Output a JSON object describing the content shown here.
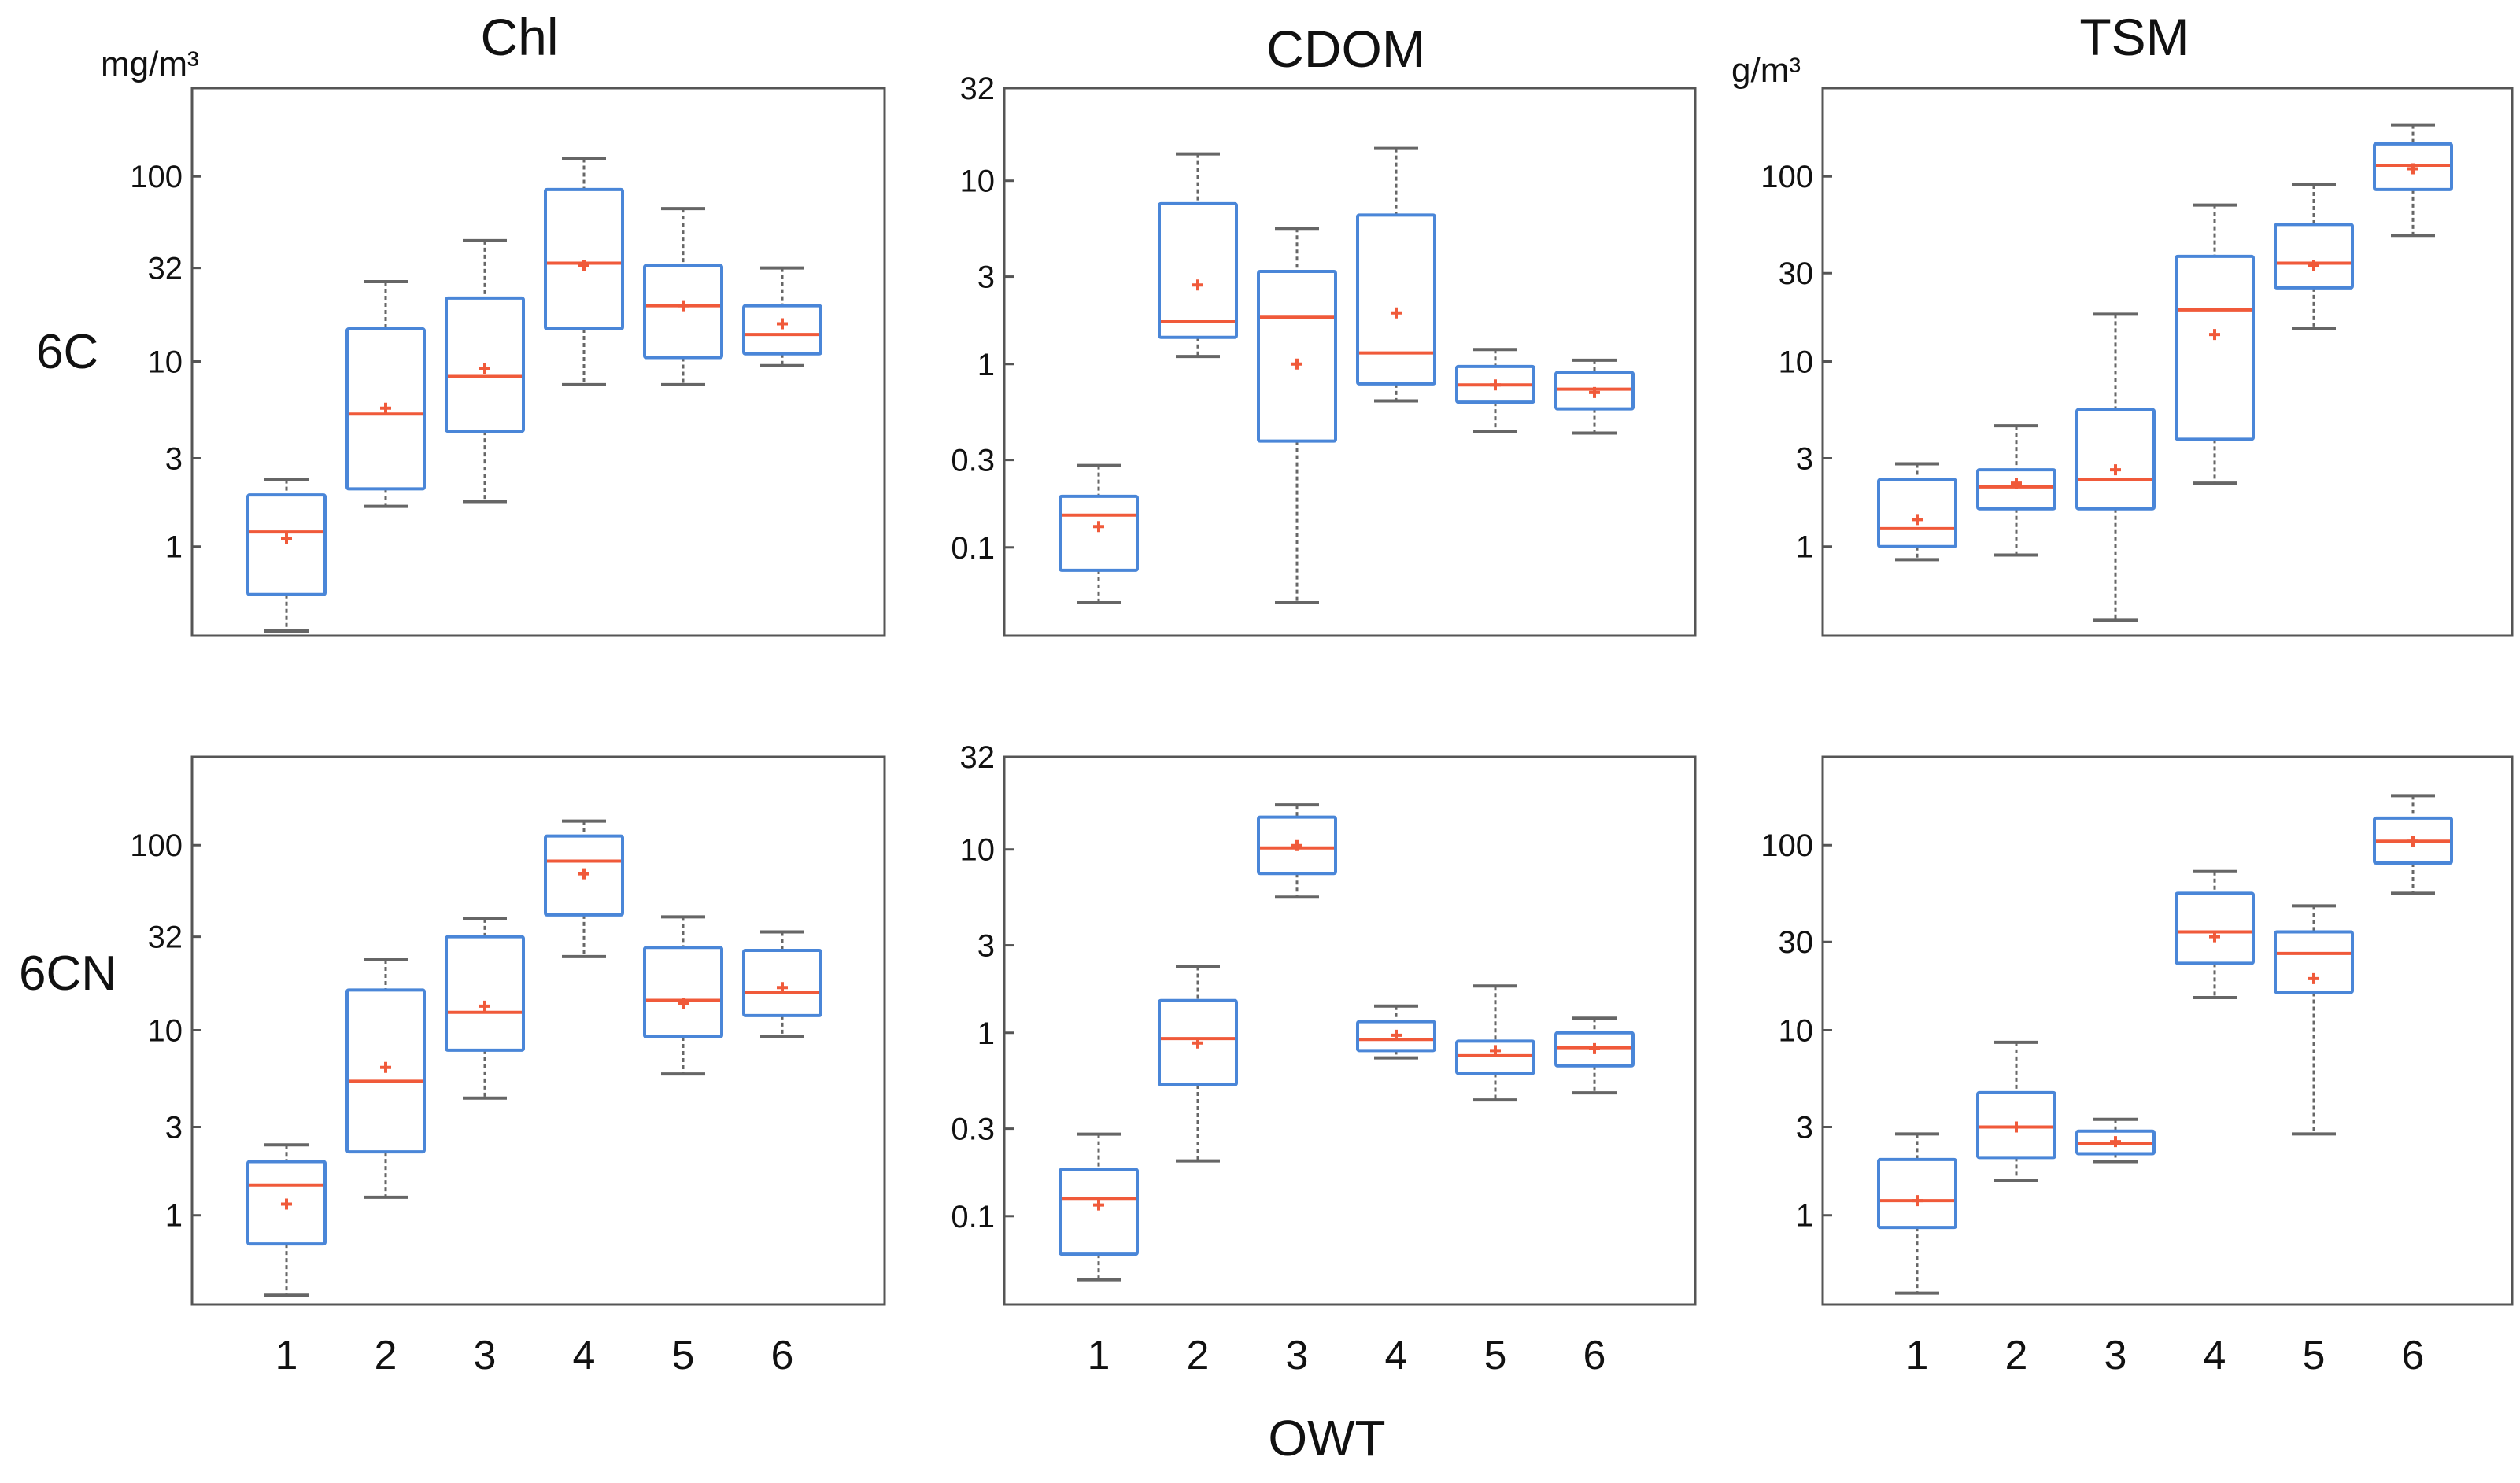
{
  "figure": {
    "xlabel": "OWT",
    "colors": {
      "box": "#4a86d8",
      "median": "#f05a3a",
      "whisker": "#666666",
      "frame": "#555555",
      "mean": "#f05a3a"
    }
  },
  "chart_data": [
    {
      "id": "chl-6c",
      "type": "boxplot",
      "row": "6C",
      "title": "Chl",
      "unit": "mg/m³",
      "yscale": "log",
      "ylim": [
        0.33,
        300
      ],
      "yticks": [
        1,
        3,
        10,
        32,
        100
      ],
      "ytick_labels": [
        "1",
        "3",
        "10",
        "32",
        "100"
      ],
      "categories": [
        "1",
        "2",
        "3",
        "4",
        "5",
        "6"
      ],
      "boxes": [
        {
          "x": "1",
          "low": 0.35,
          "q1": 0.55,
          "median": 1.2,
          "q3": 1.9,
          "high": 2.3,
          "mean": 1.1
        },
        {
          "x": "2",
          "low": 1.65,
          "q1": 2.05,
          "median": 5.2,
          "q3": 15,
          "high": 27,
          "mean": 5.6
        },
        {
          "x": "3",
          "low": 1.75,
          "q1": 4.2,
          "median": 8.3,
          "q3": 22,
          "high": 45,
          "mean": 9.2
        },
        {
          "x": "4",
          "low": 7.5,
          "q1": 15,
          "median": 34,
          "q3": 85,
          "high": 125,
          "mean": 33
        },
        {
          "x": "5",
          "low": 7.5,
          "q1": 10.5,
          "median": 20,
          "q3": 33,
          "high": 67,
          "mean": 20
        },
        {
          "x": "6",
          "low": 9.5,
          "q1": 11,
          "median": 14,
          "q3": 20,
          "high": 32,
          "mean": 16
        }
      ]
    },
    {
      "id": "cdom-6c",
      "type": "boxplot",
      "row": "6C",
      "title": "CDOM",
      "unit": "",
      "yscale": "log",
      "ylim": [
        0.033,
        32
      ],
      "yticks": [
        0.1,
        0.3,
        1,
        3,
        10,
        32
      ],
      "ytick_labels": [
        "0.1",
        "0.3",
        "1",
        "3",
        "10",
        "32"
      ],
      "categories": [
        "1",
        "2",
        "3",
        "4",
        "5",
        "6"
      ],
      "boxes": [
        {
          "x": "1",
          "low": 0.05,
          "q1": 0.075,
          "median": 0.15,
          "q3": 0.19,
          "high": 0.28,
          "mean": 0.13
        },
        {
          "x": "2",
          "low": 1.1,
          "q1": 1.4,
          "median": 1.7,
          "q3": 7.5,
          "high": 14,
          "mean": 2.7
        },
        {
          "x": "3",
          "low": 0.05,
          "q1": 0.38,
          "median": 1.8,
          "q3": 3.2,
          "high": 5.5,
          "mean": 1.0
        },
        {
          "x": "4",
          "low": 0.63,
          "q1": 0.78,
          "median": 1.15,
          "q3": 6.5,
          "high": 15,
          "mean": 1.9
        },
        {
          "x": "5",
          "low": 0.43,
          "q1": 0.62,
          "median": 0.77,
          "q3": 0.97,
          "high": 1.2,
          "mean": 0.77
        },
        {
          "x": "6",
          "low": 0.42,
          "q1": 0.57,
          "median": 0.73,
          "q3": 0.9,
          "high": 1.05,
          "mean": 0.7
        }
      ]
    },
    {
      "id": "tsm-6c",
      "type": "boxplot",
      "row": "6C",
      "title": "TSM",
      "unit": "g/m³",
      "yscale": "log",
      "ylim": [
        0.33,
        300
      ],
      "yticks": [
        1,
        3,
        10,
        30,
        100
      ],
      "ytick_labels": [
        "1",
        "3",
        "10",
        "30",
        "100"
      ],
      "categories": [
        "1",
        "2",
        "3",
        "4",
        "5",
        "6"
      ],
      "boxes": [
        {
          "x": "1",
          "low": 0.85,
          "q1": 1.0,
          "median": 1.25,
          "q3": 2.3,
          "high": 2.8,
          "mean": 1.4
        },
        {
          "x": "2",
          "low": 0.9,
          "q1": 1.6,
          "median": 2.1,
          "q3": 2.6,
          "high": 4.5,
          "mean": 2.2
        },
        {
          "x": "3",
          "low": 0.4,
          "q1": 1.6,
          "median": 2.3,
          "q3": 5.5,
          "high": 18,
          "mean": 2.6
        },
        {
          "x": "4",
          "low": 2.2,
          "q1": 3.8,
          "median": 19,
          "q3": 37,
          "high": 70,
          "mean": 14
        },
        {
          "x": "5",
          "low": 15,
          "q1": 25,
          "median": 34,
          "q3": 55,
          "high": 90,
          "mean": 33
        },
        {
          "x": "6",
          "low": 48,
          "q1": 85,
          "median": 115,
          "q3": 150,
          "high": 190,
          "mean": 110
        }
      ]
    },
    {
      "id": "chl-6cn",
      "type": "boxplot",
      "row": "6CN",
      "title": "",
      "unit": "",
      "yscale": "log",
      "ylim": [
        0.33,
        300
      ],
      "yticks": [
        1,
        3,
        10,
        32,
        100
      ],
      "ytick_labels": [
        "1",
        "3",
        "10",
        "32",
        "100"
      ],
      "categories": [
        "1",
        "2",
        "3",
        "4",
        "5",
        "6"
      ],
      "boxes": [
        {
          "x": "1",
          "low": 0.37,
          "q1": 0.7,
          "median": 1.45,
          "q3": 1.95,
          "high": 2.4,
          "mean": 1.15
        },
        {
          "x": "2",
          "low": 1.25,
          "q1": 2.2,
          "median": 5.3,
          "q3": 16.5,
          "high": 24,
          "mean": 6.3
        },
        {
          "x": "3",
          "low": 4.3,
          "q1": 7.8,
          "median": 12.5,
          "q3": 32,
          "high": 40,
          "mean": 13.5
        },
        {
          "x": "4",
          "low": 25,
          "q1": 42,
          "median": 82,
          "q3": 112,
          "high": 135,
          "mean": 70
        },
        {
          "x": "5",
          "low": 5.8,
          "q1": 9.2,
          "median": 14.5,
          "q3": 28,
          "high": 41,
          "mean": 14
        },
        {
          "x": "6",
          "low": 9.2,
          "q1": 12,
          "median": 16,
          "q3": 27,
          "high": 34,
          "mean": 17
        }
      ]
    },
    {
      "id": "cdom-6cn",
      "type": "boxplot",
      "row": "6CN",
      "title": "",
      "unit": "",
      "yscale": "log",
      "ylim": [
        0.033,
        32
      ],
      "yticks": [
        0.1,
        0.3,
        1,
        3,
        10,
        32
      ],
      "ytick_labels": [
        "0.1",
        "0.3",
        "1",
        "3",
        "10",
        "32"
      ],
      "categories": [
        "1",
        "2",
        "3",
        "4",
        "5",
        "6"
      ],
      "boxes": [
        {
          "x": "1",
          "low": 0.045,
          "q1": 0.062,
          "median": 0.125,
          "q3": 0.18,
          "high": 0.28,
          "mean": 0.115
        },
        {
          "x": "2",
          "low": 0.2,
          "q1": 0.52,
          "median": 0.93,
          "q3": 1.5,
          "high": 2.3,
          "mean": 0.88
        },
        {
          "x": "3",
          "low": 5.5,
          "q1": 7.4,
          "median": 10.2,
          "q3": 15,
          "high": 17.5,
          "mean": 10.5
        },
        {
          "x": "4",
          "low": 0.73,
          "q1": 0.8,
          "median": 0.92,
          "q3": 1.15,
          "high": 1.4,
          "mean": 0.97
        },
        {
          "x": "5",
          "low": 0.43,
          "q1": 0.6,
          "median": 0.75,
          "q3": 0.9,
          "high": 1.8,
          "mean": 0.8
        },
        {
          "x": "6",
          "low": 0.47,
          "q1": 0.66,
          "median": 0.83,
          "q3": 1.0,
          "high": 1.2,
          "mean": 0.82
        }
      ]
    },
    {
      "id": "tsm-6cn",
      "type": "boxplot",
      "row": "6CN",
      "title": "",
      "unit": "",
      "yscale": "log",
      "ylim": [
        0.33,
        300
      ],
      "yticks": [
        1,
        3,
        10,
        30,
        100
      ],
      "ytick_labels": [
        "1",
        "3",
        "10",
        "30",
        "100"
      ],
      "categories": [
        "1",
        "2",
        "3",
        "4",
        "5",
        "6"
      ],
      "boxes": [
        {
          "x": "1",
          "low": 0.38,
          "q1": 0.86,
          "median": 1.2,
          "q3": 2.0,
          "high": 2.75,
          "mean": 1.2
        },
        {
          "x": "2",
          "low": 1.55,
          "q1": 2.05,
          "median": 3.0,
          "q3": 4.6,
          "high": 8.6,
          "mean": 3.0
        },
        {
          "x": "3",
          "low": 1.95,
          "q1": 2.15,
          "median": 2.45,
          "q3": 2.85,
          "high": 3.3,
          "mean": 2.5
        },
        {
          "x": "4",
          "low": 15,
          "q1": 23,
          "median": 34,
          "q3": 55,
          "high": 72,
          "mean": 32
        },
        {
          "x": "5",
          "low": 2.75,
          "q1": 16,
          "median": 26,
          "q3": 34,
          "high": 47,
          "mean": 19
        },
        {
          "x": "6",
          "low": 55,
          "q1": 80,
          "median": 105,
          "q3": 140,
          "high": 185,
          "mean": 105
        }
      ]
    }
  ]
}
